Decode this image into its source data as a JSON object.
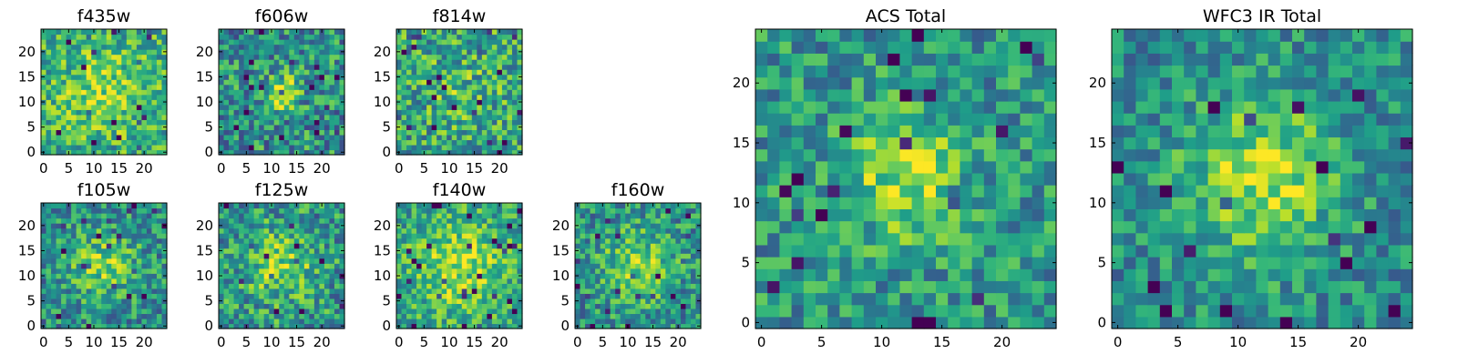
{
  "chart_data": [
    {
      "type": "heatmap",
      "title": "f435w",
      "colormap": "viridis",
      "size": 25,
      "x_ticks": [
        "0",
        "5",
        "10",
        "15",
        "20"
      ],
      "y_ticks": [
        "0",
        "5",
        "10",
        "15",
        "20"
      ],
      "xlim": [
        -0.5,
        24.5
      ],
      "ylim": [
        -0.5,
        24.5
      ],
      "seed": 11,
      "peak": 0.2,
      "base": 0.62,
      "noise": 0.26,
      "sigma": 6
    },
    {
      "type": "heatmap",
      "title": "f606w",
      "colormap": "viridis",
      "size": 25,
      "x_ticks": [
        "0",
        "5",
        "10",
        "15",
        "20"
      ],
      "y_ticks": [
        "0",
        "5",
        "10",
        "15",
        "20"
      ],
      "xlim": [
        -0.5,
        24.5
      ],
      "ylim": [
        -0.5,
        24.5
      ],
      "seed": 23,
      "peak": 0.4,
      "base": 0.5,
      "noise": 0.3,
      "sigma": 2.5
    },
    {
      "type": "heatmap",
      "title": "f814w",
      "colormap": "viridis",
      "size": 25,
      "x_ticks": [
        "0",
        "5",
        "10",
        "15",
        "20"
      ],
      "y_ticks": [
        "0",
        "5",
        "10",
        "15",
        "20"
      ],
      "xlim": [
        -0.5,
        24.5
      ],
      "ylim": [
        -0.5,
        24.5
      ],
      "seed": 37,
      "peak": 0.1,
      "base": 0.58,
      "noise": 0.3,
      "sigma": 5
    },
    {
      "type": "heatmap",
      "title": "f105w",
      "colormap": "viridis",
      "size": 25,
      "x_ticks": [
        "0",
        "5",
        "10",
        "15",
        "20"
      ],
      "y_ticks": [
        "0",
        "5",
        "10",
        "15",
        "20"
      ],
      "xlim": [
        -0.5,
        24.5
      ],
      "ylim": [
        -0.5,
        24.5
      ],
      "seed": 41,
      "peak": 0.3,
      "base": 0.48,
      "noise": 0.26,
      "sigma": 5
    },
    {
      "type": "heatmap",
      "title": "f125w",
      "colormap": "viridis",
      "size": 25,
      "x_ticks": [
        "0",
        "5",
        "10",
        "15",
        "20"
      ],
      "y_ticks": [
        "0",
        "5",
        "10",
        "15",
        "20"
      ],
      "xlim": [
        -0.5,
        24.5
      ],
      "ylim": [
        -0.5,
        24.5
      ],
      "seed": 53,
      "peak": 0.28,
      "base": 0.52,
      "noise": 0.28,
      "sigma": 5
    },
    {
      "type": "heatmap",
      "title": "f140w",
      "colormap": "viridis",
      "size": 25,
      "x_ticks": [
        "0",
        "5",
        "10",
        "15",
        "20"
      ],
      "y_ticks": [
        "0",
        "5",
        "10",
        "15",
        "20"
      ],
      "xlim": [
        -0.5,
        24.5
      ],
      "ylim": [
        -0.5,
        24.5
      ],
      "seed": 67,
      "peak": 0.3,
      "base": 0.58,
      "noise": 0.24,
      "sigma": 6
    },
    {
      "type": "heatmap",
      "title": "f160w",
      "colormap": "viridis",
      "size": 25,
      "x_ticks": [
        "0",
        "5",
        "10",
        "15",
        "20"
      ],
      "y_ticks": [
        "0",
        "5",
        "10",
        "15",
        "20"
      ],
      "xlim": [
        -0.5,
        24.5
      ],
      "ylim": [
        -0.5,
        24.5
      ],
      "seed": 79,
      "peak": 0.32,
      "base": 0.5,
      "noise": 0.26,
      "sigma": 5
    },
    {
      "type": "heatmap",
      "title": "ACS Total",
      "colormap": "viridis",
      "size": 25,
      "x_ticks": [
        "0",
        "5",
        "10",
        "15",
        "20"
      ],
      "y_ticks": [
        "0",
        "5",
        "10",
        "15",
        "20"
      ],
      "xlim": [
        -0.5,
        24.5
      ],
      "ylim": [
        -0.5,
        24.5
      ],
      "seed": 97,
      "peak": 0.35,
      "base": 0.52,
      "noise": 0.24,
      "sigma": 3.5
    },
    {
      "type": "heatmap",
      "title": "WFC3 IR Total",
      "colormap": "viridis",
      "size": 25,
      "x_ticks": [
        "0",
        "5",
        "10",
        "15",
        "20"
      ],
      "y_ticks": [
        "0",
        "5",
        "10",
        "15",
        "20"
      ],
      "xlim": [
        -0.5,
        24.5
      ],
      "ylim": [
        -0.5,
        24.5
      ],
      "seed": 131,
      "peak": 0.4,
      "base": 0.48,
      "noise": 0.22,
      "sigma": 4.5
    }
  ]
}
